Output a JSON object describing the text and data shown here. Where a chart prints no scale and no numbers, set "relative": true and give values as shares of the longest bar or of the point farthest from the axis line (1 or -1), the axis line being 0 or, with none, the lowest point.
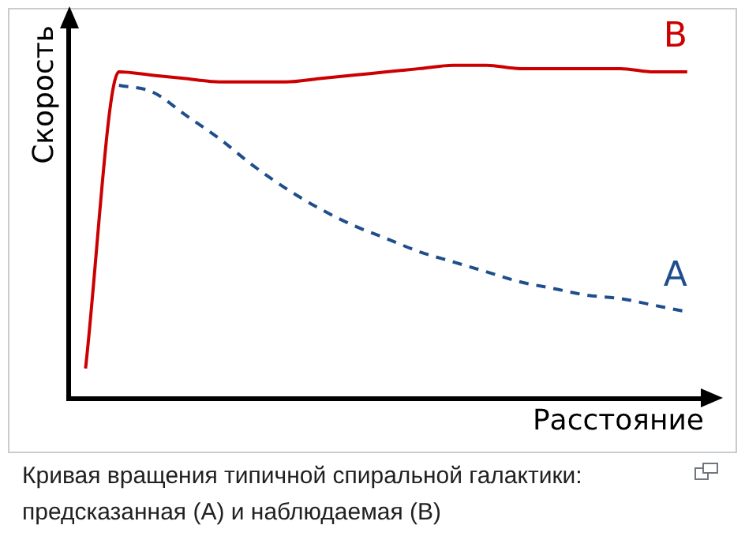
{
  "chart_data": {
    "type": "line",
    "relative": true,
    "xlabel": "Расстояние",
    "ylabel": "Скорость",
    "categories": [
      null,
      null,
      null,
      null,
      null,
      null,
      null,
      null,
      null,
      null,
      null,
      null,
      null,
      null,
      null,
      null,
      null,
      null,
      null
    ],
    "series": [
      {
        "name": "B",
        "color": "#cc0000",
        "line_style": "solid",
        "values": [
          0.09,
          0.98,
          0.97,
          0.96,
          0.95,
          0.95,
          0.95,
          0.96,
          0.97,
          0.98,
          0.99,
          1.0,
          1.0,
          0.99,
          0.99,
          0.99,
          0.99,
          0.98,
          0.98
        ]
      },
      {
        "name": "A",
        "color": "#1f4e8c",
        "line_style": "dashed",
        "values": [
          null,
          0.94,
          0.92,
          0.85,
          0.78,
          0.7,
          0.63,
          0.57,
          0.52,
          0.48,
          0.44,
          0.41,
          0.38,
          0.35,
          0.33,
          0.31,
          0.3,
          0.28,
          0.26
        ]
      }
    ],
    "marker": "none",
    "grid": false,
    "legend": false,
    "annotations": [
      "Кривая вращения типичной спиральной галактики: предсказанная (A) и наблюдаемая (B)"
    ]
  }
}
